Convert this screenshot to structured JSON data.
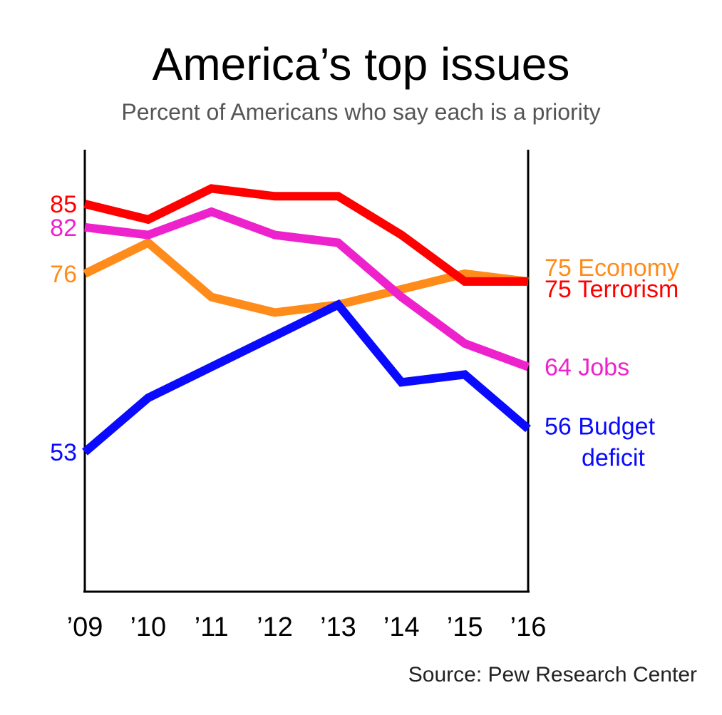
{
  "chart_data": {
    "type": "line",
    "title": "America’s top issues",
    "subtitle": "Percent of Americans who say each is a priority",
    "source": "Source: Pew Research Center",
    "categories": [
      "’09",
      "’10",
      "’11",
      "’12",
      "’13",
      "’14",
      "’15",
      "’16"
    ],
    "ylim": [
      35,
      92
    ],
    "grid": false,
    "legend": "direct labels at line ends",
    "series": [
      {
        "name": "Terrorism",
        "color": "#ff0000",
        "values": [
          85,
          83,
          87,
          86,
          86,
          81,
          75,
          75
        ],
        "start_label": "85",
        "end_label": "75 Terrorism"
      },
      {
        "name": "Jobs",
        "color": "#ee22cc",
        "values": [
          82,
          81,
          84,
          81,
          80,
          73,
          67,
          64
        ],
        "start_label": "82",
        "end_label": "64 Jobs"
      },
      {
        "name": "Economy",
        "color": "#ff8c1a",
        "values": [
          76,
          80,
          73,
          71,
          72,
          74,
          76,
          75
        ],
        "start_label": "76",
        "end_label": "75 Economy"
      },
      {
        "name": "Budget deficit",
        "color": "#0a0aff",
        "values": [
          53,
          60,
          64,
          68,
          72,
          62,
          63,
          56
        ],
        "start_label": "53",
        "end_label": [
          "56 Budget",
          "deficit"
        ]
      }
    ]
  }
}
